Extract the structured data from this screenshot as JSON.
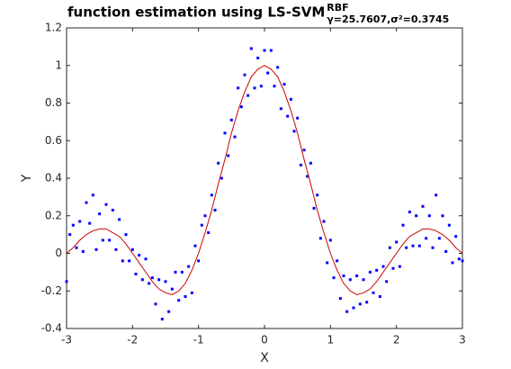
{
  "chart_data": {
    "type": "scatter",
    "title": "function estimation using  LS-SVM",
    "title_superscript": "RBF",
    "title_subscript": "γ=25.7607,σ²=0.3745",
    "xlabel": "X",
    "ylabel": "Y",
    "xlim": [
      -3,
      3
    ],
    "xticks": [
      -3,
      -2,
      -1,
      0,
      1,
      2,
      3
    ],
    "ylim": [
      -0.4,
      1.2
    ],
    "yticks": [
      -0.4,
      -0.2,
      0,
      0.2,
      0.4,
      0.6,
      0.8,
      1,
      1.2
    ],
    "series": [
      {
        "type": "scatter",
        "color": "#0000ff",
        "x": [
          -3,
          -2.95,
          -2.9,
          -2.85,
          -2.8,
          -2.75,
          -2.7,
          -2.65,
          -2.6,
          -2.55,
          -2.5,
          -2.45,
          -2.4,
          -2.35,
          -2.3,
          -2.25,
          -2.2,
          -2.15,
          -2.1,
          -2.05,
          -2,
          -1.95,
          -1.9,
          -1.85,
          -1.8,
          -1.75,
          -1.7,
          -1.65,
          -1.6,
          -1.55,
          -1.5,
          -1.45,
          -1.4,
          -1.35,
          -1.3,
          -1.25,
          -1.2,
          -1.15,
          -1.1,
          -1.05,
          -1,
          -0.95,
          -0.9,
          -0.85,
          -0.8,
          -0.75,
          -0.7,
          -0.65,
          -0.6,
          -0.55,
          -0.5,
          -0.45,
          -0.4,
          -0.35,
          -0.3,
          -0.25,
          -0.2,
          -0.15,
          -0.1,
          -0.05,
          0,
          0.05,
          0.1,
          0.15,
          0.2,
          0.25,
          0.3,
          0.35,
          0.4,
          0.45,
          0.5,
          0.55,
          0.6,
          0.65,
          0.7,
          0.75,
          0.8,
          0.85,
          0.9,
          0.95,
          1,
          1.05,
          1.1,
          1.15,
          1.2,
          1.25,
          1.3,
          1.35,
          1.4,
          1.45,
          1.5,
          1.55,
          1.6,
          1.65,
          1.7,
          1.75,
          1.8,
          1.85,
          1.9,
          1.95,
          2,
          2.05,
          2.1,
          2.15,
          2.2,
          2.25,
          2.3,
          2.35,
          2.4,
          2.45,
          2.5,
          2.55,
          2.6,
          2.65,
          2.7,
          2.75,
          2.8,
          2.85,
          2.9,
          2.95,
          3
        ],
        "values": [
          -0.15,
          0.1,
          0.15,
          0.03,
          0.17,
          0.01,
          0.27,
          0.16,
          0.31,
          0.02,
          0.21,
          0.07,
          0.26,
          0.07,
          0.23,
          0.02,
          0.18,
          -0.04,
          0.1,
          -0.04,
          0.02,
          -0.11,
          -0.01,
          -0.14,
          -0.03,
          -0.16,
          -0.13,
          -0.27,
          -0.14,
          -0.35,
          -0.15,
          -0.31,
          -0.19,
          -0.1,
          -0.25,
          -0.1,
          -0.23,
          -0.07,
          -0.21,
          0.04,
          -0.04,
          0.15,
          0.2,
          0.11,
          0.31,
          0.23,
          0.48,
          0.4,
          0.64,
          0.52,
          0.71,
          0.62,
          0.88,
          0.78,
          0.95,
          0.84,
          1.09,
          0.88,
          1.04,
          0.89,
          1.08,
          0.96,
          1.08,
          0.89,
          0.99,
          0.77,
          0.9,
          0.73,
          0.82,
          0.65,
          0.72,
          0.47,
          0.55,
          0.41,
          0.48,
          0.24,
          0.31,
          0.08,
          0.17,
          -0.05,
          0.07,
          -0.13,
          -0.04,
          -0.24,
          -0.12,
          -0.31,
          -0.14,
          -0.29,
          -0.12,
          -0.27,
          -0.14,
          -0.26,
          -0.1,
          -0.21,
          -0.09,
          -0.23,
          -0.07,
          -0.15,
          0.03,
          -0.08,
          0.06,
          -0.07,
          0.15,
          0.03,
          0.22,
          0.04,
          0.2,
          0.04,
          0.25,
          0.08,
          0.2,
          0.03,
          0.31,
          0.08,
          0.2,
          0.01,
          0.15,
          -0.05,
          0.09,
          -0.03,
          -0.04
        ]
      },
      {
        "type": "line",
        "color": "#cc0000",
        "x": [
          -3,
          -2.9,
          -2.8,
          -2.7,
          -2.6,
          -2.5,
          -2.4,
          -2.3,
          -2.2,
          -2.1,
          -2,
          -1.9,
          -1.8,
          -1.7,
          -1.6,
          -1.5,
          -1.4,
          -1.3,
          -1.2,
          -1.1,
          -1,
          -0.9,
          -0.8,
          -0.7,
          -0.6,
          -0.5,
          -0.4,
          -0.3,
          -0.2,
          -0.1,
          0,
          0.1,
          0.2,
          0.3,
          0.4,
          0.5,
          0.6,
          0.7,
          0.8,
          0.9,
          1,
          1.1,
          1.2,
          1.3,
          1.4,
          1.5,
          1.6,
          1.7,
          1.8,
          1.9,
          2,
          2.1,
          2.2,
          2.3,
          2.4,
          2.5,
          2.6,
          2.7,
          2.8,
          2.9,
          3
        ],
        "values": [
          0,
          0.03,
          0.07,
          0.1,
          0.12,
          0.13,
          0.13,
          0.11,
          0.09,
          0.05,
          0,
          -0.05,
          -0.1,
          -0.15,
          -0.19,
          -0.21,
          -0.22,
          -0.2,
          -0.16,
          -0.09,
          0,
          0.11,
          0.23,
          0.37,
          0.5,
          0.64,
          0.76,
          0.86,
          0.94,
          0.98,
          1,
          0.98,
          0.94,
          0.86,
          0.76,
          0.64,
          0.5,
          0.37,
          0.23,
          0.11,
          0,
          -0.09,
          -0.16,
          -0.2,
          -0.22,
          -0.21,
          -0.19,
          -0.15,
          -0.1,
          -0.05,
          0,
          0.05,
          0.09,
          0.11,
          0.13,
          0.13,
          0.12,
          0.1,
          0.07,
          0.03,
          0
        ]
      }
    ]
  }
}
